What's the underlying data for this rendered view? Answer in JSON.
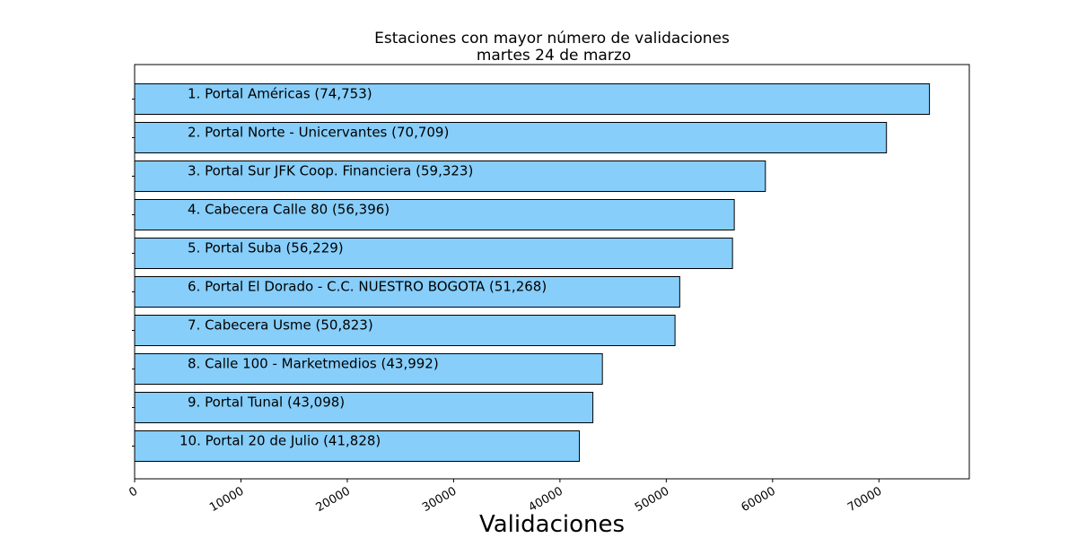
{
  "chart_data": {
    "type": "bar",
    "orientation": "horizontal",
    "title": "Estaciones con mayor número de validaciones",
    "subtitle": "martes 24 de marzo",
    "xlabel": "Validaciones",
    "ylabel": "",
    "xlim": [
      0,
      78500
    ],
    "xticks": [
      0,
      10000,
      20000,
      30000,
      40000,
      50000,
      60000,
      70000
    ],
    "grid": false,
    "legend": "none",
    "bar_color": "#87cefa",
    "bar_edge_color": "#000000",
    "categories": [
      "1. Portal Américas (74,753)",
      "2. Portal Norte - Unicervantes (70,709)",
      "3. Portal Sur JFK Coop. Financiera (59,323)",
      "4. Cabecera Calle 80 (56,396)",
      "5. Portal Suba (56,229)",
      "6. Portal El Dorado - C.C. NUESTRO BOGOTA (51,268)",
      "7. Cabecera Usme (50,823)",
      "8. Calle 100 - Marketmedios (43,992)",
      "9. Portal Tunal (43,098)",
      "10. Portal 20 de Julio (41,828)"
    ],
    "values": [
      74753,
      70709,
      59323,
      56396,
      56229,
      51268,
      50823,
      43992,
      43098,
      41828
    ]
  }
}
